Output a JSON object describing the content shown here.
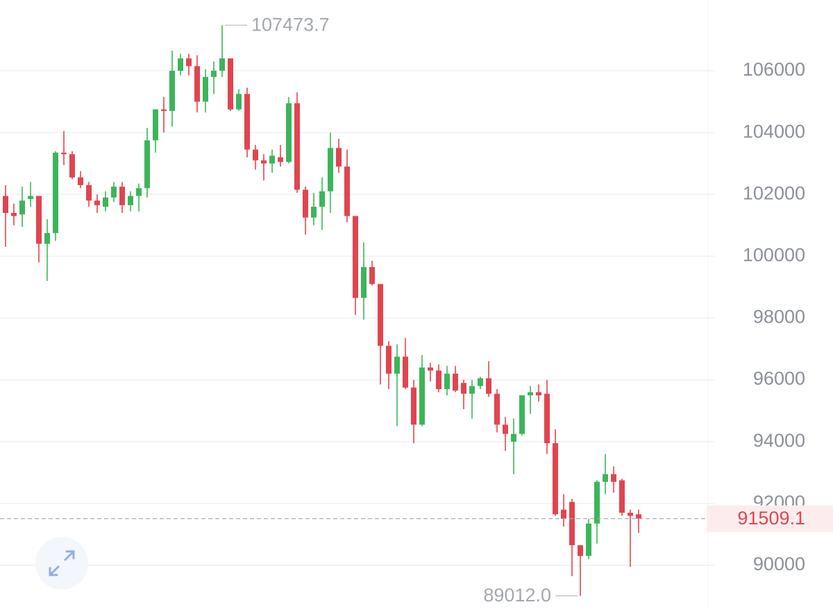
{
  "chart_data": {
    "type": "candlestick",
    "up_color": "#3cb55a",
    "down_color": "#e0454f",
    "grid": true,
    "ylim": [
      88586,
      108289
    ],
    "yticks": [
      90000,
      92000,
      94000,
      96000,
      98000,
      100000,
      102000,
      104000,
      106000
    ],
    "max_label": "107473.7",
    "min_label": "89012.0",
    "last_label": "91509.1",
    "open": [
      101950,
      101400,
      101350,
      101850,
      101950,
      100400,
      100750,
      103350,
      103300,
      102550,
      102300,
      101800,
      101600,
      101900,
      102250,
      101650,
      101950,
      102200,
      103750,
      104750,
      104700,
      106000,
      106400,
      106150,
      105000,
      105800,
      106000,
      106400,
      104750,
      105250,
      103450,
      103100,
      103000,
      103200,
      103050,
      104950,
      102150,
      101250,
      101600,
      102100,
      103500,
      102900,
      101300,
      98650,
      99650,
      99100,
      97100,
      96200,
      96750,
      95750,
      94550,
      96400,
      96300,
      95700,
      96200,
      95900,
      95550,
      95800,
      96050,
      95550,
      94550,
      94000,
      94250,
      95500,
      95600,
      95550,
      93950,
      91800,
      92050,
      90650,
      90300,
      91350,
      92700,
      92950,
      92750,
      91700,
      91650
    ],
    "high": [
      102300,
      101700,
      102250,
      102400,
      101950,
      101200,
      103400,
      104050,
      103400,
      102750,
      102400,
      102000,
      102100,
      102400,
      102400,
      102100,
      102350,
      104150,
      104750,
      105150,
      106650,
      106550,
      106550,
      106500,
      106050,
      106300,
      107473.7,
      106400,
      105400,
      105450,
      103600,
      103300,
      103450,
      103600,
      105150,
      105300,
      102250,
      102050,
      102550,
      104000,
      103800,
      103450,
      101300,
      100450,
      99850,
      99100,
      97250,
      97150,
      97350,
      96000,
      96800,
      96550,
      96500,
      96450,
      96450,
      96000,
      96000,
      96100,
      96600,
      95700,
      94800,
      94750,
      95500,
      95800,
      95850,
      96000,
      94400,
      92300,
      92150,
      90650,
      91500,
      92750,
      93600,
      93200,
      92800,
      91800,
      91800
    ],
    "low": [
      100300,
      101000,
      100950,
      101600,
      99800,
      99200,
      100500,
      102950,
      102500,
      102200,
      101600,
      101400,
      101450,
      101750,
      101400,
      101450,
      101450,
      101900,
      103350,
      104000,
      104200,
      105850,
      105850,
      104650,
      104650,
      105250,
      105800,
      104700,
      104700,
      103200,
      102800,
      102450,
      102700,
      102900,
      103000,
      102050,
      100700,
      101000,
      100850,
      101400,
      102700,
      101100,
      98100,
      97950,
      99050,
      95850,
      95700,
      94500,
      95700,
      93950,
      94500,
      95950,
      95600,
      95500,
      95600,
      95050,
      94750,
      95700,
      95450,
      94300,
      93700,
      92950,
      94200,
      94900,
      95300,
      93600,
      91600,
      91250,
      89650,
      89012.0,
      90200,
      90700,
      92300,
      92350,
      91600,
      89950,
      91050
    ],
    "close": [
      101400,
      101300,
      101800,
      101950,
      100400,
      100750,
      103350,
      103300,
      102550,
      102300,
      101800,
      101650,
      101900,
      102250,
      101650,
      101950,
      102200,
      103750,
      104750,
      104700,
      106000,
      106400,
      106150,
      105000,
      105800,
      106000,
      106400,
      104750,
      105250,
      103450,
      103100,
      103000,
      103250,
      103050,
      104950,
      102150,
      101250,
      101600,
      102100,
      103500,
      102900,
      101300,
      98650,
      99650,
      99100,
      97100,
      96200,
      96750,
      95750,
      94550,
      96400,
      96300,
      95700,
      96200,
      95650,
      95550,
      95800,
      96050,
      95550,
      94550,
      94250,
      94250,
      95500,
      95600,
      95500,
      93950,
      91650,
      91500,
      90650,
      90300,
      91350,
      92700,
      92950,
      92700,
      91700,
      91600,
      91509.1
    ]
  }
}
